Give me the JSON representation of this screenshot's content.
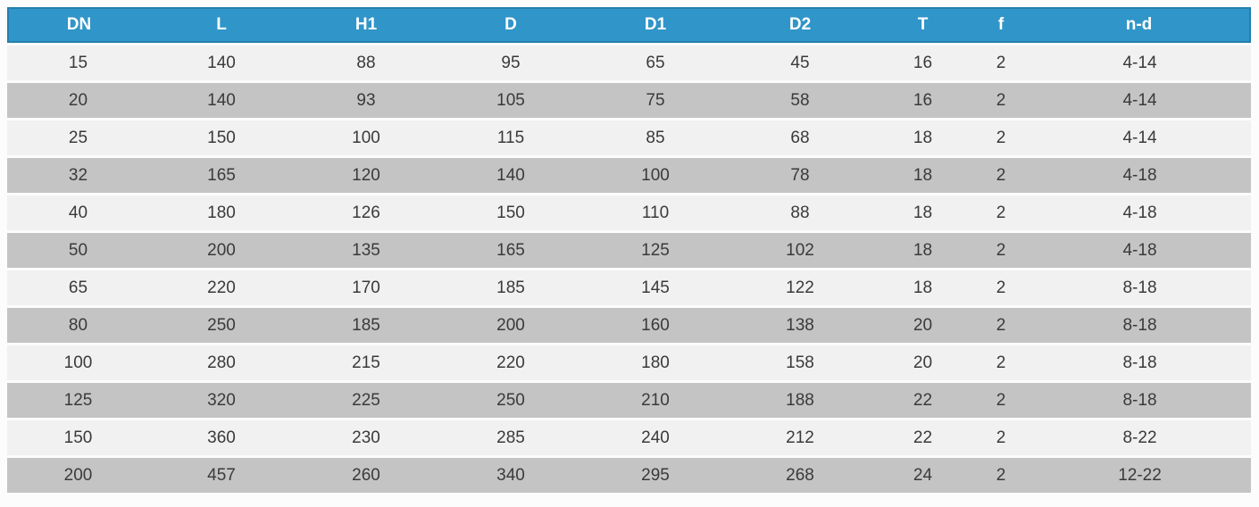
{
  "table": {
    "columns": [
      "DN",
      "L",
      "H1",
      "D",
      "D1",
      "D2",
      "T",
      "f",
      "n-d"
    ],
    "rows": [
      [
        "15",
        "140",
        "88",
        "95",
        "65",
        "45",
        "16",
        "2",
        "4-14"
      ],
      [
        "20",
        "140",
        "93",
        "105",
        "75",
        "58",
        "16",
        "2",
        "4-14"
      ],
      [
        "25",
        "150",
        "100",
        "115",
        "85",
        "68",
        "18",
        "2",
        "4-14"
      ],
      [
        "32",
        "165",
        "120",
        "140",
        "100",
        "78",
        "18",
        "2",
        "4-18"
      ],
      [
        "40",
        "180",
        "126",
        "150",
        "110",
        "88",
        "18",
        "2",
        "4-18"
      ],
      [
        "50",
        "200",
        "135",
        "165",
        "125",
        "102",
        "18",
        "2",
        "4-18"
      ],
      [
        "65",
        "220",
        "170",
        "185",
        "145",
        "122",
        "18",
        "2",
        "8-18"
      ],
      [
        "80",
        "250",
        "185",
        "200",
        "160",
        "138",
        "20",
        "2",
        "8-18"
      ],
      [
        "100",
        "280",
        "215",
        "220",
        "180",
        "158",
        "20",
        "2",
        "8-18"
      ],
      [
        "125",
        "320",
        "225",
        "250",
        "210",
        "188",
        "22",
        "2",
        "8-18"
      ],
      [
        "150",
        "360",
        "230",
        "285",
        "240",
        "212",
        "22",
        "2",
        "8-22"
      ],
      [
        "200",
        "457",
        "260",
        "340",
        "295",
        "268",
        "24",
        "2",
        "12-22"
      ]
    ]
  },
  "colors": {
    "header_bg": "#3095c9",
    "header_border": "#2580ad",
    "header_text": "#ffffff",
    "row_light": "#f1f1f1",
    "row_dark": "#c4c4c4",
    "body_text": "#3a3a3a",
    "page_bg": "#fcfcfc"
  }
}
